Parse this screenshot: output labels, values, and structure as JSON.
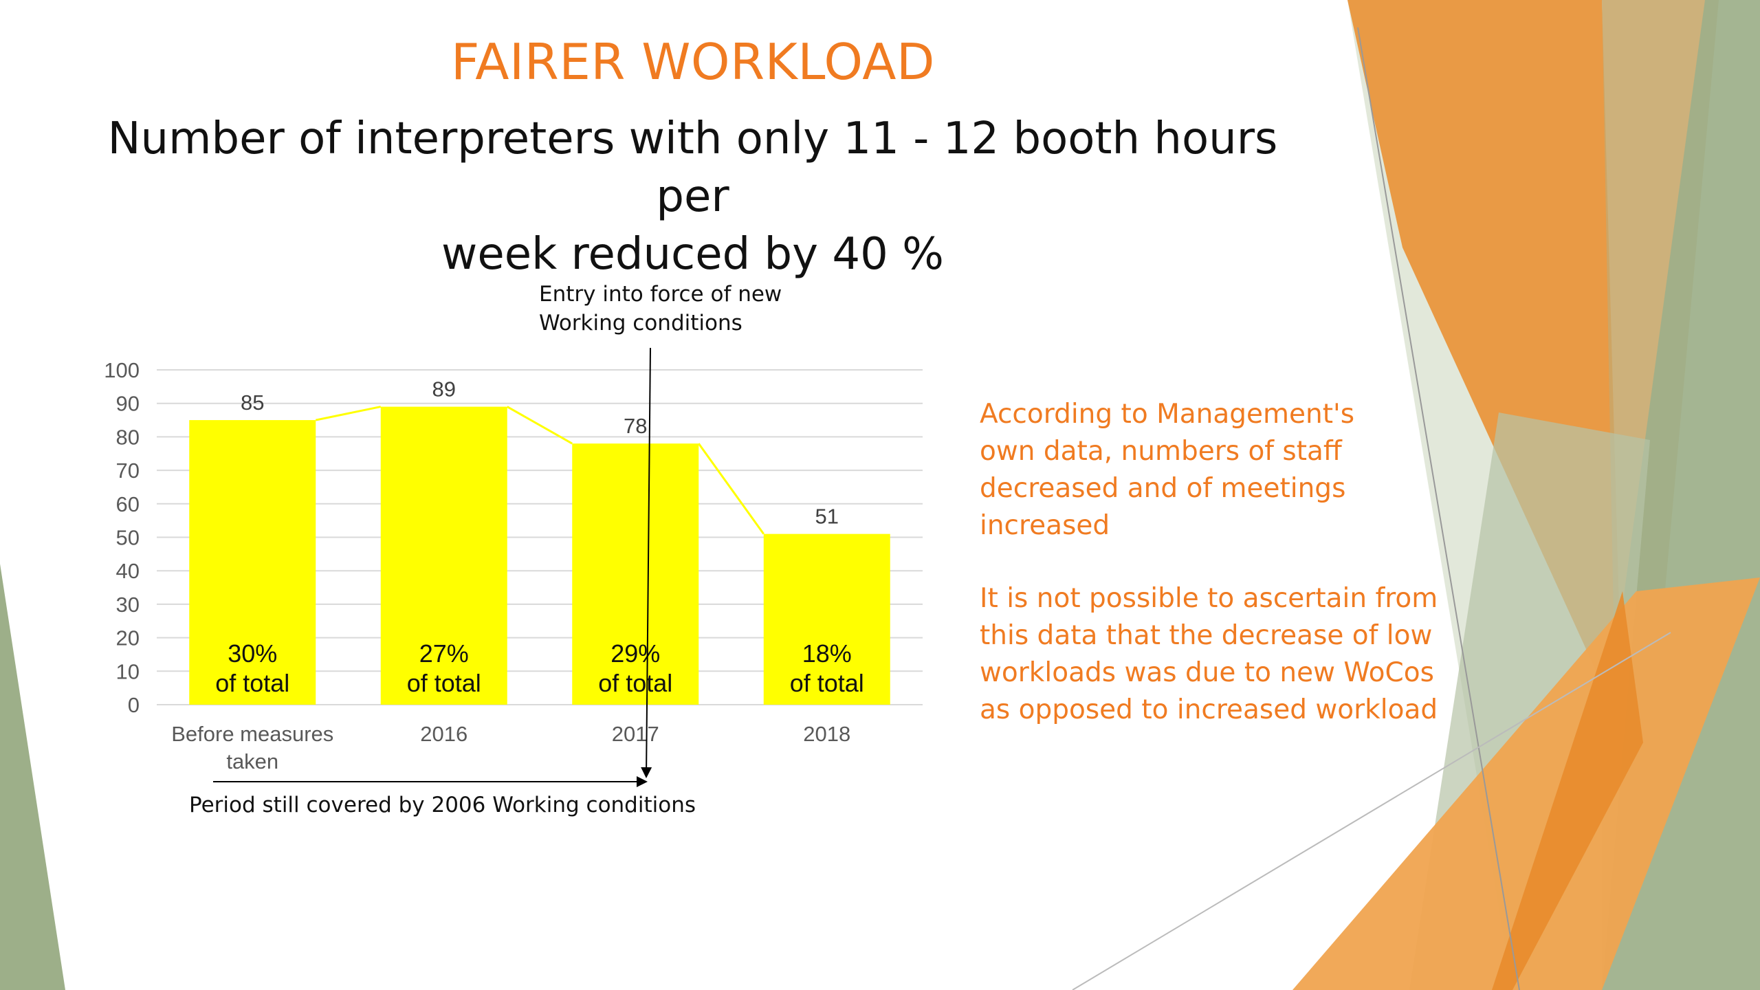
{
  "slide": {
    "title": "FAIRER WORKLOAD",
    "subtitle_line1": "Number of interpreters with only 11 - 12 booth hours per",
    "subtitle_line2": "week reduced by 40 %",
    "entry_note_line1": "Entry into force of new",
    "entry_note_line2": "Working conditions",
    "period_note": "Period still covered by 2006 Working conditions",
    "side_text_1": [
      "According to Management's",
      "own data, numbers of staff",
      "decreased and of meetings",
      "increased"
    ],
    "side_text_2": [
      "It is not possible to ascertain from",
      "this data that the decrease of low",
      "workloads was due to new WoCos",
      "as opposed to increased workload"
    ],
    "colors": {
      "accent": "#f07b21",
      "bar": "#ffff00",
      "theme_green": "#9daf89",
      "theme_orange": "#e99a45"
    }
  },
  "chart_data": {
    "type": "bar",
    "categories": [
      "Before measures taken",
      "2016",
      "2017",
      "2018"
    ],
    "values": [
      85,
      89,
      78,
      51
    ],
    "bar_labels": [
      [
        "30%",
        "of total"
      ],
      [
        "27%",
        "of total"
      ],
      [
        "29%",
        "of total"
      ],
      [
        "18%",
        "of total"
      ]
    ],
    "yticks": [
      "0",
      "10",
      "20",
      "30",
      "40",
      "50",
      "60",
      "70",
      "80",
      "90",
      "100"
    ],
    "ylim": [
      0,
      100
    ],
    "grid": true,
    "connector_line": true,
    "bar_color": "#ffff00"
  }
}
